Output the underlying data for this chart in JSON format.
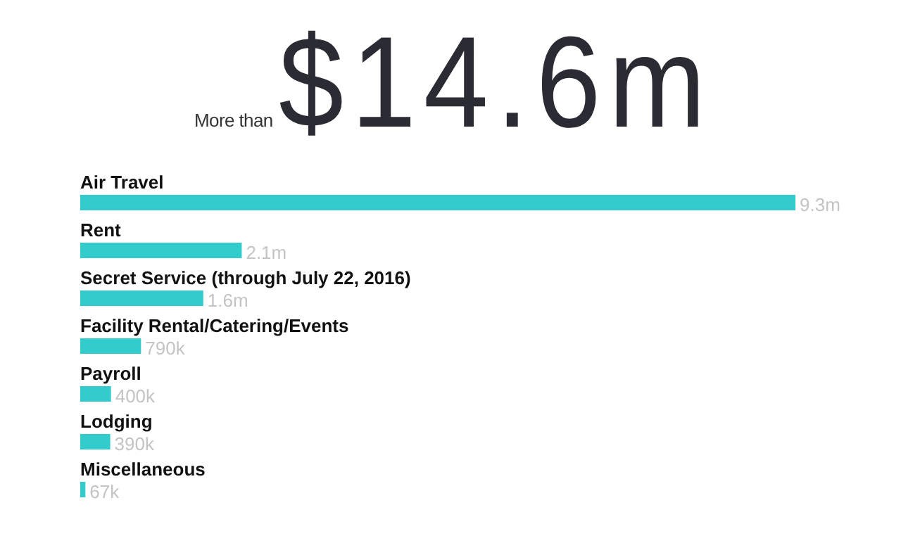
{
  "chart_data": {
    "type": "bar",
    "orientation": "horizontal",
    "title": "$14.6m",
    "subtitle": "More than",
    "categories": [
      "Air Travel",
      "Rent",
      "Secret Service (through July 22, 2016)",
      "Facility Rental/Catering/Events",
      "Payroll",
      "Lodging",
      "Miscellaneous"
    ],
    "values": [
      9300000,
      2100000,
      1600000,
      790000,
      400000,
      390000,
      67000
    ],
    "value_labels": [
      "9.3m",
      "2.1m",
      "1.6m",
      "790k",
      "400k",
      "390k",
      "67k"
    ],
    "color": "#33cccc"
  }
}
